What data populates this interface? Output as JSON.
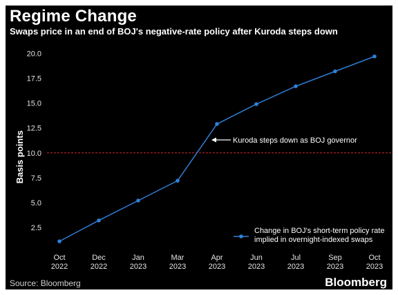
{
  "title": "Regime Change",
  "subtitle": "Swaps price in an end of BOJ's negative-rate policy after Kuroda steps down",
  "source": "Source: Bloomberg",
  "brand": "Bloomberg",
  "footer_note": "",
  "colors": {
    "background": "#000000",
    "series": "#2f7fd8",
    "reference_line": "#d62a2a",
    "text": "#ffffff"
  },
  "chart_data": {
    "type": "line",
    "title": "Regime Change",
    "subtitle": "Swaps price in an end of BOJ's negative-rate policy after Kuroda steps down",
    "ylabel": "Basis points",
    "xlabel": "",
    "ylim": [
      0,
      20.8
    ],
    "yticks": [
      "2.5",
      "5.0",
      "7.5",
      "10.0",
      "12.5",
      "15.0",
      "17.5",
      "20.0"
    ],
    "ytick_values": [
      2.5,
      5.0,
      7.5,
      10.0,
      12.5,
      15.0,
      17.5,
      20.0
    ],
    "xticks": [
      {
        "line1": "Oct",
        "line2": "2022"
      },
      {
        "line1": "Dec",
        "line2": "2022"
      },
      {
        "line1": "Jan",
        "line2": "2023"
      },
      {
        "line1": "Mar",
        "line2": "2023"
      },
      {
        "line1": "Apr",
        "line2": "2023"
      },
      {
        "line1": "Jun",
        "line2": "2023"
      },
      {
        "line1": "Jul",
        "line2": "2023"
      },
      {
        "line1": "Sep",
        "line2": "2023"
      },
      {
        "line1": "Oct",
        "line2": "2023"
      }
    ],
    "series": [
      {
        "name": "Change in BOJ's short-term policy rate implied in overnight-indexed swaps",
        "legend_lines": [
          "Change in BOJ's short-term policy rate",
          "implied in overnight-indexed swaps"
        ],
        "values": [
          1.1,
          3.2,
          5.2,
          7.2,
          12.9,
          14.9,
          16.7,
          18.2,
          19.7
        ]
      }
    ],
    "reference_line": {
      "y": 10.0,
      "style": "dashed"
    },
    "annotation": {
      "text": "Kuroda steps down as BOJ governor",
      "at_index": 4
    },
    "grid": false,
    "legend_position": "bottom-right"
  }
}
